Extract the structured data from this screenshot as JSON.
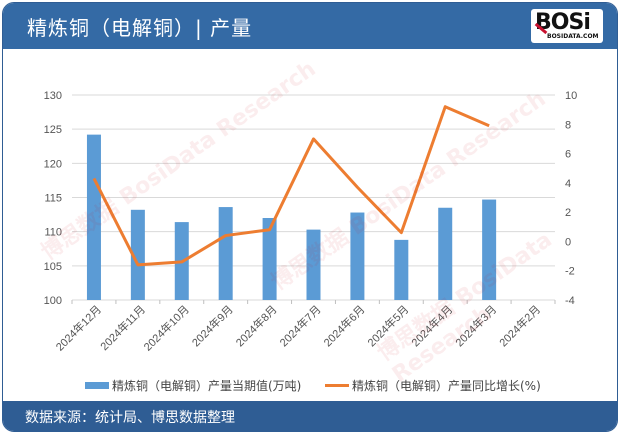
{
  "header": {
    "title": "精炼铜（电解铜）| 产量",
    "logo_text": "BOSi",
    "logo_sub": "BOSIDATA.COM"
  },
  "footer": {
    "source": "数据来源：统计局、博思数据整理"
  },
  "legend": {
    "bar_label": "精炼铜（电解铜）产量当期值(万吨)",
    "line_label": "精炼铜（电解铜）产量同比增长(%)"
  },
  "watermark": "博思数据 BosiData Research",
  "colors": {
    "header_bg": "#346aa5",
    "bar": "#5b9bd5",
    "line": "#ed7d31",
    "grid": "#d9d9d9"
  },
  "chart_data": {
    "type": "bar+line",
    "title": "精炼铜（电解铜）| 产量",
    "categories": [
      "2024年12月",
      "2024年11月",
      "2024年10月",
      "2024年9月",
      "2024年8月",
      "2024年7月",
      "2024年6月",
      "2024年5月",
      "2024年4月",
      "2024年3月",
      "2024年2月"
    ],
    "series": [
      {
        "name": "精炼铜（电解铜）产量当期值(万吨)",
        "type": "bar",
        "axis": "left",
        "values": [
          124.2,
          113.2,
          111.4,
          113.6,
          112.0,
          110.3,
          112.8,
          108.8,
          113.5,
          114.7,
          null
        ]
      },
      {
        "name": "精炼铜（电解铜）产量同比增长(%)",
        "type": "line",
        "axis": "right",
        "values": [
          4.3,
          -1.6,
          -1.4,
          0.4,
          0.8,
          7.0,
          3.7,
          0.6,
          9.2,
          7.9,
          null
        ]
      }
    ],
    "left_axis": {
      "ylim": [
        100,
        130
      ],
      "ticks": [
        "100",
        "105",
        "110",
        "115",
        "120",
        "125",
        "130"
      ]
    },
    "right_axis": {
      "ylim": [
        -4,
        10
      ],
      "ticks": [
        "-4",
        "-2",
        "0",
        "2",
        "4",
        "6",
        "8",
        "10"
      ]
    },
    "grid": true,
    "legend_position": "bottom"
  }
}
